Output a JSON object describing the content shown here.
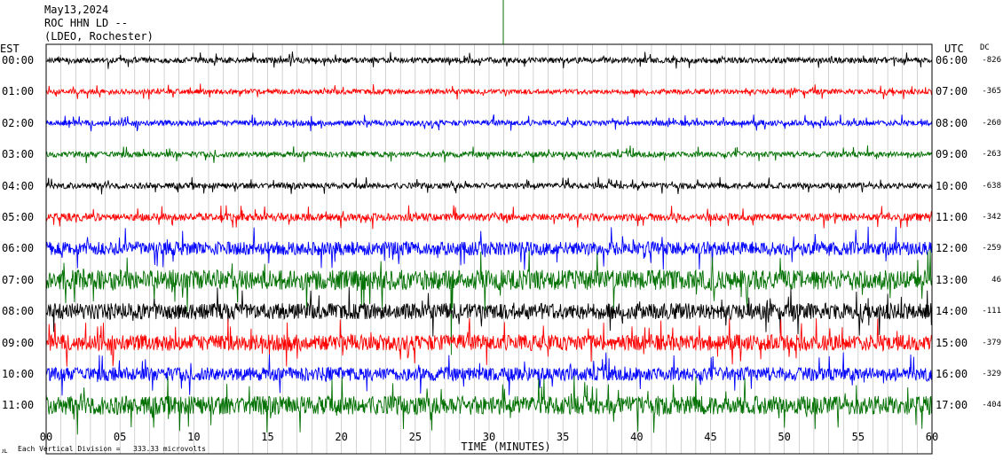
{
  "header": {
    "date": "May13,2024",
    "station": "ROC HHN LD --",
    "location": "(LDEO, Rochester)"
  },
  "left_zone": "EST",
  "right_zone": "UTC",
  "dc_header": "DC",
  "xlabel": "TIME (MINUTES)",
  "footer_note": "Each Vertical Division =",
  "footer_value": "333.33 microvolts",
  "trace_colors": [
    "#000000",
    "#ff0000",
    "#0000ff",
    "#007000"
  ],
  "chart_data": {
    "type": "line",
    "title": "",
    "xlabel": "TIME (MINUTES)",
    "ylabel": "",
    "xlim": [
      0,
      60
    ],
    "xticks": [
      "00",
      "05",
      "10",
      "15",
      "20",
      "25",
      "30",
      "35",
      "40",
      "45",
      "50",
      "55",
      "60"
    ],
    "rows": [
      {
        "est": "00:00",
        "utc": "06:00",
        "dc": "-826",
        "color": "#000000",
        "noise": 0.9
      },
      {
        "est": "01:00",
        "utc": "07:00",
        "dc": "-365",
        "color": "#ff0000",
        "noise": 0.8
      },
      {
        "est": "02:00",
        "utc": "08:00",
        "dc": "-260",
        "color": "#0000ff",
        "noise": 0.9
      },
      {
        "est": "03:00",
        "utc": "09:00",
        "dc": "-263",
        "color": "#007000",
        "noise": 0.9
      },
      {
        "est": "04:00",
        "utc": "10:00",
        "dc": "-638",
        "color": "#000000",
        "noise": 0.9
      },
      {
        "est": "05:00",
        "utc": "11:00",
        "dc": "-342",
        "color": "#ff0000",
        "noise": 1.2
      },
      {
        "est": "06:00",
        "utc": "12:00",
        "dc": "-259",
        "color": "#0000ff",
        "noise": 2.2
      },
      {
        "est": "07:00",
        "utc": "13:00",
        "dc": "46",
        "color": "#007000",
        "noise": 3.2
      },
      {
        "est": "08:00",
        "utc": "14:00",
        "dc": "-111",
        "color": "#000000",
        "noise": 2.6
      },
      {
        "est": "09:00",
        "utc": "15:00",
        "dc": "-379",
        "color": "#ff0000",
        "noise": 2.6
      },
      {
        "est": "10:00",
        "utc": "16:00",
        "dc": "-329",
        "color": "#0000ff",
        "noise": 2.2
      },
      {
        "est": "11:00",
        "utc": "17:00",
        "dc": "-404",
        "color": "#007000",
        "noise": 3.0
      }
    ]
  }
}
